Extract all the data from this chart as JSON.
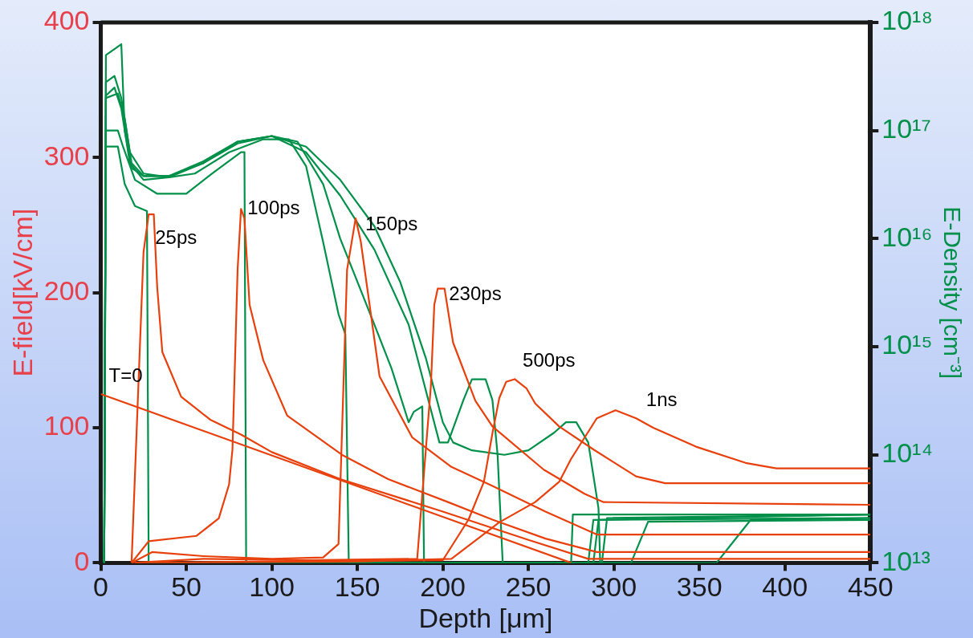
{
  "chart_data": {
    "type": "line",
    "xlabel": "Depth [μm]",
    "ylabel": "E-field[kV/cm]",
    "y2label": "E-Density [cm⁻³]",
    "xlim": [
      0,
      450
    ],
    "xticks": [
      0,
      50,
      100,
      150,
      200,
      250,
      300,
      350,
      400,
      450
    ],
    "ylim": [
      0,
      400
    ],
    "yticks": [
      0,
      100,
      200,
      300,
      400
    ],
    "y2lim": [
      10000000000000.0,
      1e+18
    ],
    "y2ticks": [
      {
        "value": 10000000000000.0,
        "label": "10¹³"
      },
      {
        "value": 100000000000000.0,
        "label": "10¹⁴"
      },
      {
        "value": 1000000000000000.0,
        "label": "10¹⁵"
      },
      {
        "value": 1e+16,
        "label": "10¹⁶"
      },
      {
        "value": 1e+17,
        "label": "10¹⁷"
      },
      {
        "value": 1e+18,
        "label": "10¹⁸"
      }
    ],
    "log": "y2",
    "grid": false,
    "legend": false,
    "marker": "none",
    "line_style": "solid",
    "series": [
      {
        "color": "#e8400c",
        "x": [
          0,
          275
        ],
        "values": [
          125,
          0
        ]
      },
      {
        "color": "#e8400c",
        "x": [
          18,
          25,
          28,
          31,
          33,
          36,
          47,
          64,
          82,
          100,
          140,
          200,
          250,
          285,
          450
        ],
        "values": [
          0,
          230,
          258,
          258,
          204,
          156,
          123,
          106,
          95,
          82,
          62,
          38,
          17,
          3,
          3
        ]
      },
      {
        "color": "#e8400c",
        "x": [
          18,
          28,
          56,
          69,
          75,
          77,
          80,
          82,
          84,
          87,
          95,
          109,
          141,
          168,
          203,
          229,
          260,
          290,
          450
        ],
        "values": [
          0,
          16,
          20,
          33,
          58,
          84,
          217,
          262,
          255,
          191,
          150,
          109,
          80,
          62,
          45,
          32,
          18,
          8,
          8
        ]
      },
      {
        "color": "#e8400c",
        "x": [
          18,
          30,
          60,
          100,
          130,
          139,
          144,
          149,
          152,
          163,
          182,
          205,
          229,
          260,
          290,
          450
        ],
        "values": [
          0,
          8,
          5,
          3,
          4,
          14,
          217,
          255,
          238,
          138,
          93,
          71,
          57,
          38,
          21,
          21
        ]
      },
      {
        "color": "#e8400c",
        "x": [
          18,
          60,
          120,
          185,
          193,
          195,
          197,
          201,
          206,
          219,
          229,
          259,
          283,
          294,
          450
        ],
        "values": [
          0,
          3,
          2,
          3,
          131,
          191,
          203,
          203,
          163,
          120,
          101,
          69,
          51,
          45,
          43
        ]
      },
      {
        "color": "#e8400c",
        "x": [
          20,
          100,
          200,
          215,
          224,
          229,
          233,
          237,
          242,
          249,
          254,
          268,
          288,
          313,
          330,
          450
        ],
        "values": [
          0,
          1,
          2,
          32,
          60,
          96,
          122,
          134,
          136,
          129,
          118,
          101,
          84,
          64,
          59,
          59
        ]
      },
      {
        "color": "#e8400c",
        "x": [
          20,
          150,
          205,
          233,
          254,
          268,
          275,
          290,
          301,
          313,
          323,
          348,
          377,
          395,
          450
        ],
        "values": [
          0,
          1,
          3,
          30,
          45,
          60,
          77,
          107,
          113,
          107,
          100,
          86,
          74,
          70,
          70
        ]
      },
      {
        "color": "#00904a",
        "axis": "y2",
        "x": [
          2,
          3,
          10,
          14,
          20,
          27,
          28,
          275,
          276,
          450
        ],
        "values": [
          10000000000000.0,
          7.1e+16,
          7.1e+16,
          3.2e+16,
          2e+16,
          1.8e+16,
          10000000000000.0,
          10000000000000.0,
          28000000000000.0,
          28000000000000.0
        ]
      },
      {
        "color": "#00904a",
        "axis": "y2",
        "x": [
          2,
          3,
          10,
          13,
          20,
          33,
          50,
          65,
          82,
          84,
          85,
          285,
          288,
          450
        ],
        "values": [
          10000000000000.0,
          1e+17,
          1e+17,
          7.1e+16,
          3.5e+16,
          2.6e+16,
          2.6e+16,
          4e+16,
          6.3e+16,
          6.3e+16,
          10000000000000.0,
          10000000000000.0,
          25000000000000.0,
          26000000000000.0
        ]
      },
      {
        "color": "#00904a",
        "axis": "y2",
        "x": [
          2,
          3,
          8,
          12,
          17,
          25,
          40,
          55,
          75,
          95,
          110,
          120,
          130,
          139,
          143,
          145,
          310,
          320,
          450
        ],
        "values": [
          10000000000000.0,
          2.8e+17,
          3.2e+17,
          2e+17,
          6.3e+16,
          4e+16,
          3.7e+16,
          4e+16,
          6.3e+16,
          8.3e+16,
          8.3e+16,
          4.7e+16,
          9300000000000000.0,
          2000000000000000.0,
          1300000000000000.0,
          10000000000000.0,
          10000000000000.0,
          24000000000000.0,
          25000000000000.0
        ]
      },
      {
        "color": "#00904a",
        "axis": "y2",
        "x": [
          2,
          3,
          8,
          12,
          17,
          25,
          40,
          60,
          80,
          100,
          115,
          130,
          140,
          150,
          160,
          170,
          180,
          183,
          188,
          189,
          360,
          380,
          450
        ],
        "values": [
          10000000000000.0,
          2.1e+17,
          2.5e+17,
          1.6e+17,
          5e+16,
          3.5e+16,
          3.7e+16,
          5e+16,
          7.6e+16,
          8.9e+16,
          7.9e+16,
          3.2e+16,
          1e+16,
          4000000000000000.0,
          1600000000000000.0,
          630000000000000.0,
          200000000000000.0,
          250000000000000.0,
          280000000000000.0,
          10000000000000.0,
          10000000000000.0,
          25000000000000.0,
          26000000000000.0
        ]
      },
      {
        "color": "#00904a",
        "axis": "y2",
        "x": [
          2,
          3,
          12,
          14,
          18,
          25,
          40,
          60,
          80,
          100,
          120,
          140,
          160,
          180,
          198,
          203,
          212,
          217,
          225,
          229,
          232,
          235,
          288,
          291,
          450
        ],
        "values": [
          10000000000000.0,
          5e+17,
          6.3e+17,
          1e+17,
          4.5e+16,
          3.8e+16,
          3.8e+16,
          5e+16,
          7.9e+16,
          8.9e+16,
          6.3e+16,
          2.5e+16,
          7900000000000000.0,
          1600000000000000.0,
          130000000000000.0,
          130000000000000.0,
          320000000000000.0,
          500000000000000.0,
          500000000000000.0,
          320000000000000.0,
          100000000000000.0,
          10000000000000.0,
          10000000000000.0,
          25000000000000.0,
          28000000000000.0
        ]
      },
      {
        "color": "#00904a",
        "axis": "y2",
        "x": [
          2,
          3,
          10,
          14,
          18,
          25,
          40,
          60,
          80,
          100,
          120,
          140,
          160,
          175,
          190,
          200,
          206,
          217,
          236,
          250,
          265,
          272,
          278,
          285,
          291,
          292,
          293,
          296,
          450
        ],
        "values": [
          10000000000000.0,
          2e+17,
          2.2e+17,
          1.3e+17,
          5e+16,
          3.8e+16,
          3.8e+16,
          5.2e+16,
          7.9e+16,
          8.9e+16,
          7.1e+16,
          3.5e+16,
          1.3e+16,
          4000000000000000.0,
          790000000000000.0,
          200000000000000.0,
          130000000000000.0,
          110000000000000.0,
          100000000000000.0,
          110000000000000.0,
          160000000000000.0,
          200000000000000.0,
          200000000000000.0,
          130000000000000.0,
          32000000000000.0,
          10000000000000.0,
          10000000000000.0,
          26000000000000.0,
          28000000000000.0
        ]
      }
    ],
    "annotations": [
      "T=0",
      "25ps",
      "100ps",
      "150ps",
      "230ps",
      "500ps",
      "1ns"
    ]
  }
}
